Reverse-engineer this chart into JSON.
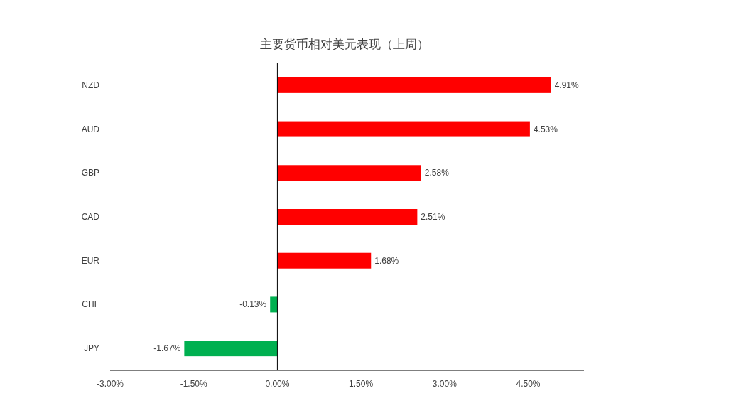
{
  "chart_data": {
    "type": "bar",
    "orientation": "horizontal",
    "title": "主要货币相对美元表现（上周）",
    "categories": [
      "NZD",
      "AUD",
      "GBP",
      "CAD",
      "EUR",
      "CHF",
      "JPY"
    ],
    "values": [
      4.91,
      4.53,
      2.58,
      2.51,
      1.68,
      -0.13,
      -1.67
    ],
    "colors": [
      "#ff0000",
      "#ff0000",
      "#ff0000",
      "#ff0000",
      "#ff0000",
      "#00b050",
      "#00b050"
    ],
    "value_labels": [
      "4.91%",
      "4.53%",
      "2.58%",
      "2.51%",
      "1.68%",
      "-0.13%",
      "-1.67%"
    ],
    "xlim": [
      -3,
      5.5
    ],
    "xticks": [
      {
        "value": -3,
        "label": "-3.00%"
      },
      {
        "value": -1.5,
        "label": "-1.50%"
      },
      {
        "value": 0,
        "label": "0.00%"
      },
      {
        "value": 1.5,
        "label": "1.50%"
      },
      {
        "value": 3,
        "label": "3.00%"
      },
      {
        "value": 4.5,
        "label": "4.50%"
      }
    ]
  }
}
